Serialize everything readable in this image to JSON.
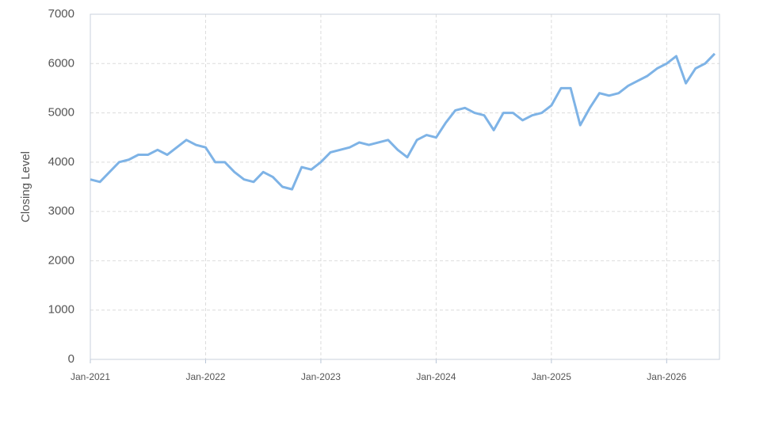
{
  "chart_data": {
    "type": "line",
    "y_label": "Closing Level",
    "x": [
      "Jan-2021",
      "Feb-2021",
      "Mar-2021",
      "Apr-2021",
      "May-2021",
      "Jun-2021",
      "Jul-2021",
      "Aug-2021",
      "Sep-2021",
      "Oct-2021",
      "Nov-2021",
      "Dec-2021",
      "Jan-2022",
      "Feb-2022",
      "Mar-2022",
      "Apr-2022",
      "May-2022",
      "Jun-2022",
      "Jul-2022",
      "Aug-2022",
      "Sep-2022",
      "Oct-2022",
      "Nov-2022",
      "Dec-2022",
      "Jan-2023",
      "Feb-2023",
      "Mar-2023",
      "Apr-2023",
      "May-2023",
      "Jun-2023",
      "Jul-2023",
      "Aug-2023",
      "Sep-2023",
      "Oct-2023",
      "Nov-2023",
      "Dec-2023",
      "Jan-2024",
      "Feb-2024",
      "Mar-2024",
      "Apr-2024",
      "May-2024",
      "Jun-2024",
      "Jul-2024",
      "Aug-2024",
      "Sep-2024",
      "Oct-2024",
      "Nov-2024",
      "Dec-2024",
      "Jan-2025",
      "Feb-2025",
      "Mar-2025",
      "Apr-2025",
      "May-2025",
      "Jun-2025",
      "Jul-2025",
      "Aug-2025",
      "Sep-2025",
      "Oct-2025",
      "Nov-2025",
      "Dec-2025",
      "Jan-2026",
      "Feb-2026",
      "Mar-2026",
      "Apr-2026",
      "May-2026",
      "Jun-2026"
    ],
    "series": [
      {
        "name": "Closing Level",
        "color": "#7eb3e6",
        "values": [
          3650,
          3600,
          3800,
          4000,
          4050,
          4150,
          4150,
          4250,
          4150,
          4300,
          4450,
          4350,
          4300,
          4000,
          4000,
          3800,
          3650,
          3600,
          3800,
          3700,
          3500,
          3450,
          3900,
          3850,
          4000,
          4200,
          4250,
          4300,
          4400,
          4350,
          4400,
          4450,
          4250,
          4100,
          4450,
          4550,
          4500,
          4800,
          5050,
          5100,
          5000,
          4950,
          4650,
          5000,
          5000,
          4850,
          4950,
          5000,
          5150,
          5500,
          5500,
          4750,
          5100,
          5400,
          5350,
          5400,
          5550,
          5650,
          5750,
          5900,
          6000,
          6150,
          5600,
          5900,
          6000,
          6200
        ]
      }
    ],
    "ylim": [
      0,
      7000
    ],
    "yticks": [
      0,
      1000,
      2000,
      3000,
      4000,
      5000,
      6000,
      7000
    ],
    "xticks": [
      0,
      12,
      24,
      36,
      48,
      60
    ],
    "grid": true
  }
}
